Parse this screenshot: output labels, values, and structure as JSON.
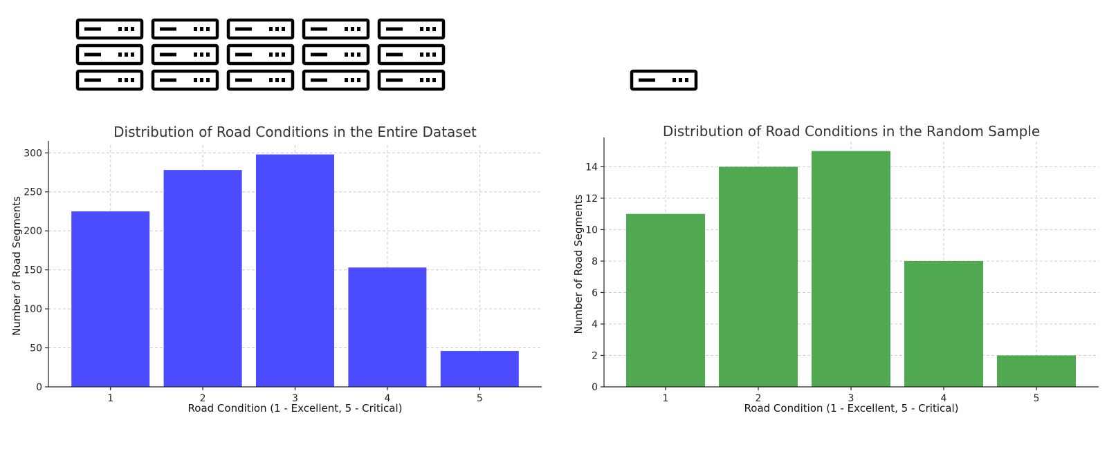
{
  "icons": {
    "panel_1": {
      "icon": "server-icon",
      "count": 15
    },
    "panel_2": {
      "icon": "server-icon",
      "count": 1
    }
  },
  "chart_data": [
    {
      "type": "bar",
      "title": "Distribution of Road Conditions in the Entire Dataset",
      "xlabel": "Road Condition (1 - Excellent, 5 - Critical)",
      "ylabel": "Number of Road Segments",
      "categories": [
        "1",
        "2",
        "3",
        "4",
        "5"
      ],
      "values": [
        225,
        278,
        298,
        153,
        46
      ],
      "ylim": [
        0,
        310
      ],
      "yticks": [
        0,
        50,
        100,
        150,
        200,
        250,
        300
      ],
      "color": "#4848ff",
      "grid": true
    },
    {
      "type": "bar",
      "title": "Distribution of Road Conditions in the Random Sample",
      "xlabel": "Road Condition (1 - Excellent, 5 - Critical)",
      "ylabel": "Number of Road Segments",
      "categories": [
        "1",
        "2",
        "3",
        "4",
        "5"
      ],
      "values": [
        11,
        14,
        15,
        8,
        2
      ],
      "ylim": [
        0,
        15.6
      ],
      "yticks": [
        0,
        2,
        4,
        6,
        8,
        10,
        12,
        14
      ],
      "color": "#4ca64c",
      "grid": true
    }
  ]
}
